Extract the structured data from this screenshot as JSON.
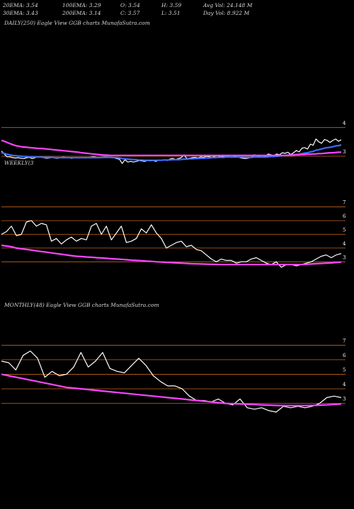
{
  "header": {
    "row1": {
      "ema20": "20EMA: 3.54",
      "ema100": "100EMA: 3.29",
      "open": "O: 3.54",
      "high": "H: 3.59",
      "avg_vol": "Avg Vol: 24.148  M"
    },
    "row2": {
      "ema30": "30EMA: 3.43",
      "ema200": "200EMA: 3.14",
      "close": "C: 3.57",
      "low": "L: 3.51",
      "day_vol": "Day Vol: 8.922  M"
    }
  },
  "panels": {
    "daily_label": "DAILY(250) Eagle   View  GGB charts MunafaSutra.com",
    "weekly_label": "WEEKLY(3",
    "monthly_label": "MONTHLY(48) Eagle   View  GGB charts MunafaSutra.com"
  },
  "colors": {
    "background": "#000000",
    "price": "#ffffff",
    "ema_fast": "#3a6cff",
    "ema_slow": "#ff44ff",
    "grid": "#c8641e"
  },
  "chart_data": [
    {
      "type": "line",
      "title": "DAILY(250)",
      "ylim": [
        2.73,
        4.45
      ],
      "yticks": [
        {
          "value": 4,
          "label": "4"
        },
        {
          "value": 3,
          "label": "3"
        }
      ],
      "series": [
        {
          "values": [
            3.18,
            3.08,
            2.98,
            2.98,
            2.95,
            2.94,
            2.95,
            2.93,
            2.92,
            2.95,
            2.96,
            2.92,
            2.95,
            2.97,
            2.98,
            2.95,
            2.93,
            2.94,
            2.96,
            2.94,
            2.93,
            2.95,
            2.97,
            2.96,
            2.95,
            2.93,
            2.95,
            2.94,
            2.95,
            2.96,
            2.94,
            2.95,
            2.97,
            2.98,
            2.96,
            2.95,
            2.97,
            2.98,
            2.97,
            2.96,
            2.95,
            2.92,
            2.9,
            2.75,
            2.88,
            2.8,
            2.82,
            2.8,
            2.82,
            2.85,
            2.84,
            2.82,
            2.85,
            2.84,
            2.85,
            2.82,
            2.87,
            2.86,
            2.88,
            2.85,
            2.9,
            2.93,
            2.88,
            2.92,
            2.95,
            3.05,
            2.92,
            2.93,
            2.95,
            2.96,
            2.94,
            2.98,
            2.96,
            3.0,
            2.98,
            2.96,
            3.0,
            3.02,
            2.98,
            3.0,
            3.02,
            2.98,
            2.96,
            3.0,
            2.98,
            2.95,
            2.93,
            2.92,
            2.94,
            2.96,
            3.05,
            3.02,
            2.98,
            2.96,
            3.0,
            3.08,
            3.05,
            3.02,
            3.08,
            3.05,
            3.12,
            3.1,
            3.14,
            3.06,
            3.12,
            3.2,
            3.15,
            3.28,
            3.3,
            3.25,
            3.42,
            3.38,
            3.6,
            3.5,
            3.45,
            3.58,
            3.55,
            3.48,
            3.55,
            3.6,
            3.52,
            3.57
          ]
        },
        {
          "values": [
            3.12,
            3.1,
            3.07,
            3.05,
            3.03,
            3.02,
            3.01,
            3.0,
            2.99,
            2.99,
            2.98,
            2.98,
            2.97,
            2.97,
            2.97,
            2.96,
            2.96,
            2.96,
            2.96,
            2.95,
            2.95,
            2.95,
            2.95,
            2.95,
            2.95,
            2.95,
            2.95,
            2.95,
            2.95,
            2.95,
            2.95,
            2.95,
            2.95,
            2.95,
            2.95,
            2.95,
            2.96,
            2.96,
            2.96,
            2.96,
            2.95,
            2.95,
            2.94,
            2.92,
            2.91,
            2.9,
            2.89,
            2.88,
            2.88,
            2.87,
            2.87,
            2.86,
            2.86,
            2.86,
            2.86,
            2.86,
            2.86,
            2.86,
            2.87,
            2.87,
            2.87,
            2.88,
            2.88,
            2.88,
            2.89,
            2.9,
            2.9,
            2.91,
            2.91,
            2.92,
            2.92,
            2.93,
            2.93,
            2.94,
            2.94,
            2.95,
            2.95,
            2.96,
            2.96,
            2.96,
            2.97,
            2.97,
            2.97,
            2.97,
            2.97,
            2.97,
            2.97,
            2.96,
            2.96,
            2.96,
            2.97,
            2.97,
            2.97,
            2.97,
            2.97,
            2.98,
            2.99,
            2.99,
            3.0,
            3.01,
            3.02,
            3.03,
            3.04,
            3.04,
            3.05,
            3.06,
            3.07,
            3.09,
            3.11,
            3.12,
            3.15,
            3.17,
            3.21,
            3.23,
            3.25,
            3.28,
            3.3,
            3.31,
            3.33,
            3.36,
            3.37,
            3.39
          ]
        },
        {
          "values": [
            3.55,
            3.52,
            3.48,
            3.44,
            3.4,
            3.37,
            3.35,
            3.33,
            3.32,
            3.31,
            3.3,
            3.29,
            3.28,
            3.27,
            3.27,
            3.26,
            3.25,
            3.24,
            3.23,
            3.22,
            3.21,
            3.2,
            3.19,
            3.18,
            3.17,
            3.16,
            3.15,
            3.14,
            3.12,
            3.11,
            3.1,
            3.09,
            3.08,
            3.07,
            3.06,
            3.05,
            3.04,
            3.04,
            3.03,
            3.03,
            3.03,
            3.03,
            3.03,
            3.03,
            3.03,
            3.03,
            3.03,
            3.03,
            3.03,
            3.03,
            3.03,
            3.03,
            3.03,
            3.03,
            3.03,
            3.03,
            3.03,
            3.03,
            3.03,
            3.03,
            3.03,
            3.03,
            3.03,
            3.03,
            3.03,
            3.03,
            3.03,
            3.03,
            3.03,
            3.03,
            3.03,
            3.03,
            3.03,
            3.03,
            3.03,
            3.03,
            3.03,
            3.03,
            3.03,
            3.03,
            3.03,
            3.03,
            3.03,
            3.03,
            3.03,
            3.03,
            3.03,
            3.03,
            3.03,
            3.03,
            3.03,
            3.03,
            3.03,
            3.03,
            3.03,
            3.03,
            3.03,
            3.03,
            3.03,
            3.03,
            3.03,
            3.04,
            3.04,
            3.05,
            3.05,
            3.06,
            3.06,
            3.07,
            3.07,
            3.08,
            3.08,
            3.09,
            3.09,
            3.1,
            3.11,
            3.12,
            3.12,
            3.13,
            3.14,
            3.14
          ]
        }
      ]
    },
    {
      "type": "line",
      "title": "WEEKLY",
      "ylim": [
        2.5,
        7.5
      ],
      "yticks": [
        {
          "value": 7,
          "label": "7"
        },
        {
          "value": 6,
          "label": "6"
        },
        {
          "value": 5,
          "label": "5"
        },
        {
          "value": 4,
          "label": "4"
        },
        {
          "value": 3,
          "label": "3"
        }
      ],
      "series": [
        {
          "values": [
            5.0,
            5.2,
            5.6,
            4.9,
            5.0,
            5.9,
            6.0,
            5.6,
            5.8,
            5.7,
            4.5,
            4.7,
            4.3,
            4.6,
            4.8,
            4.5,
            4.7,
            4.6,
            5.6,
            5.8,
            5.0,
            5.6,
            4.6,
            5.1,
            5.6,
            4.4,
            4.5,
            4.7,
            5.4,
            5.1,
            5.7,
            5.1,
            4.7,
            4.0,
            4.2,
            4.4,
            4.5,
            4.1,
            4.2,
            3.9,
            3.8,
            3.5,
            3.2,
            3.0,
            3.2,
            3.1,
            3.1,
            2.9,
            3.0,
            3.0,
            3.2,
            3.3,
            3.1,
            2.9,
            2.8,
            3.0,
            2.6,
            2.8,
            2.8,
            2.7,
            2.8,
            2.9,
            3.0,
            3.2,
            3.4,
            3.5,
            3.3,
            3.5,
            3.6
          ]
        },
        {
          "values": [
            4.2,
            4.15,
            4.1,
            4.0,
            3.95,
            3.9,
            3.85,
            3.8,
            3.75,
            3.7,
            3.65,
            3.6,
            3.55,
            3.5,
            3.45,
            3.4,
            3.38,
            3.35,
            3.33,
            3.3,
            3.28,
            3.25,
            3.22,
            3.2,
            3.18,
            3.15,
            3.12,
            3.1,
            3.08,
            3.05,
            3.03,
            3.0,
            2.98,
            2.96,
            2.94,
            2.92,
            2.9,
            2.88,
            2.86,
            2.85,
            2.84,
            2.83,
            2.82,
            2.81,
            2.8,
            2.8,
            2.8,
            2.8,
            2.8,
            2.8,
            2.8,
            2.8,
            2.8,
            2.8,
            2.8,
            2.8,
            2.8,
            2.8,
            2.8,
            2.8,
            2.8,
            2.82,
            2.84,
            2.86,
            2.88,
            2.9,
            2.92,
            2.95,
            2.98
          ]
        }
      ]
    },
    {
      "type": "line",
      "title": "MONTHLY(48)",
      "ylim": [
        2.3,
        7.5
      ],
      "yticks": [
        {
          "value": 7,
          "label": "7"
        },
        {
          "value": 6,
          "label": "6"
        },
        {
          "value": 5,
          "label": "5"
        },
        {
          "value": 4,
          "label": "4"
        },
        {
          "value": 3,
          "label": "3"
        }
      ],
      "series": [
        {
          "values": [
            5.9,
            5.8,
            5.3,
            6.3,
            6.6,
            6.1,
            4.8,
            5.2,
            4.9,
            5.0,
            5.5,
            6.5,
            5.5,
            5.9,
            6.5,
            5.4,
            5.2,
            5.1,
            5.6,
            6.1,
            5.6,
            4.9,
            4.5,
            4.2,
            4.2,
            4.0,
            3.5,
            3.2,
            3.2,
            3.1,
            3.3,
            3.0,
            2.9,
            3.3,
            2.7,
            2.6,
            2.7,
            2.5,
            2.4,
            2.8,
            2.7,
            2.8,
            2.7,
            2.8,
            3.0,
            3.4,
            3.5,
            3.4
          ]
        },
        {
          "values": [
            5.0,
            4.9,
            4.8,
            4.7,
            4.6,
            4.5,
            4.4,
            4.3,
            4.2,
            4.1,
            4.05,
            4.0,
            3.95,
            3.9,
            3.85,
            3.8,
            3.75,
            3.7,
            3.65,
            3.6,
            3.55,
            3.5,
            3.45,
            3.4,
            3.35,
            3.3,
            3.25,
            3.2,
            3.15,
            3.1,
            3.05,
            3.0,
            2.98,
            2.96,
            2.94,
            2.92,
            2.9,
            2.88,
            2.86,
            2.85,
            2.85,
            2.85,
            2.85,
            2.86,
            2.88,
            2.9,
            2.93,
            2.96
          ]
        }
      ]
    }
  ]
}
